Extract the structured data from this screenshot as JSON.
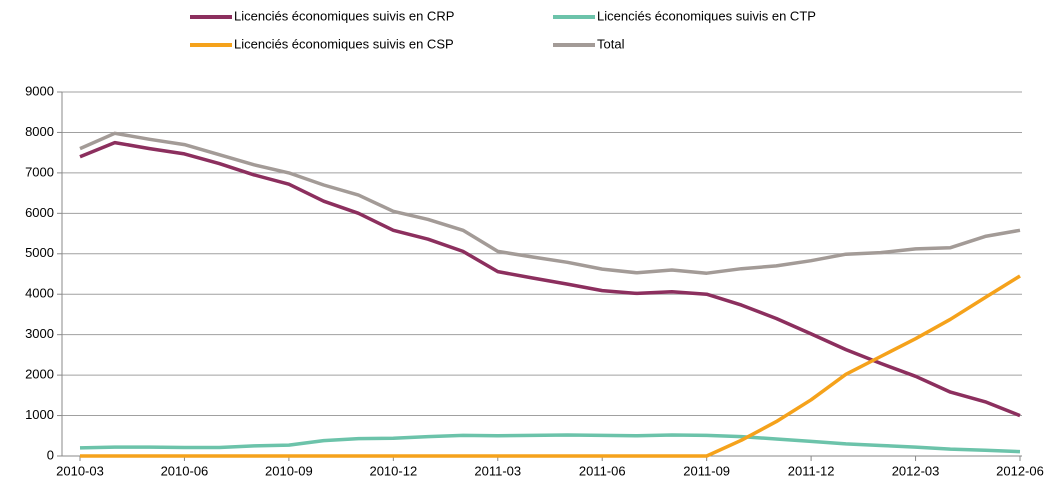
{
  "chart_data": {
    "type": "line",
    "categories": [
      "2010-03",
      null,
      null,
      "2010-06",
      null,
      null,
      "2010-09",
      null,
      null,
      "2010-12",
      null,
      null,
      "2011-03",
      null,
      null,
      "2011-06",
      null,
      null,
      "2011-09",
      null,
      null,
      "2011-12",
      null,
      null,
      "2012-03",
      null,
      null,
      "2012-06"
    ],
    "series": [
      {
        "name": "Total",
        "color": "#a39b97",
        "values": [
          7600,
          7980,
          7830,
          7700,
          7450,
          7200,
          7000,
          6700,
          6450,
          6050,
          5850,
          5580,
          5060,
          4920,
          4790,
          4620,
          4530,
          4600,
          4520,
          4630,
          4700,
          4830,
          4990,
          5030,
          5120,
          5150,
          5430,
          5580
        ]
      },
      {
        "name": "Licenciés économiques suivis en CRP",
        "color": "#8c2f5e",
        "values": [
          7400,
          7750,
          7600,
          7470,
          7230,
          6950,
          6720,
          6300,
          6000,
          5580,
          5360,
          5060,
          4560,
          4400,
          4250,
          4090,
          4020,
          4060,
          4000,
          3730,
          3400,
          3020,
          2630,
          2290,
          1970,
          1580,
          1340,
          1000
        ]
      },
      {
        "name": "Licenciés économiques suivis en CTP",
        "color": "#6cc3aa",
        "values": [
          200,
          220,
          220,
          210,
          210,
          250,
          270,
          380,
          430,
          440,
          480,
          510,
          500,
          510,
          520,
          510,
          500,
          520,
          510,
          480,
          420,
          360,
          300,
          260,
          220,
          170,
          140,
          110
        ]
      },
      {
        "name": "Licenciés économiques suivis en CSP",
        "color": "#f5a21b",
        "values": [
          0,
          0,
          0,
          0,
          0,
          0,
          0,
          0,
          0,
          0,
          0,
          0,
          0,
          0,
          0,
          0,
          0,
          0,
          0,
          390,
          850,
          1390,
          2020,
          2460,
          2900,
          3380,
          3920,
          4450
        ]
      }
    ],
    "ylim": [
      0,
      9000
    ],
    "yticks": [
      0,
      1000,
      2000,
      3000,
      4000,
      5000,
      6000,
      7000,
      8000,
      9000
    ],
    "grid": true
  }
}
